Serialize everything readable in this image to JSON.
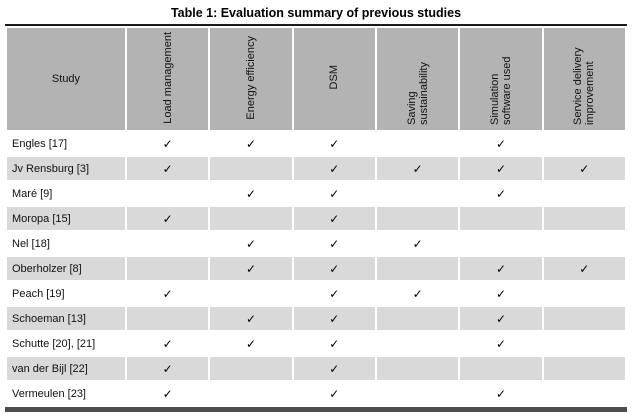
{
  "title": "Table 1: Evaluation summary of previous studies",
  "table": {
    "study_header": "Study",
    "criteria": [
      "Load management",
      "Energy efficiency",
      "DSM",
      "Saving sustainability",
      "Simulation software used",
      "Service delivery improvement"
    ],
    "check_glyph": "✓",
    "rows": [
      {
        "study": "Engles [17]",
        "checks": [
          1,
          1,
          1,
          0,
          1,
          0
        ]
      },
      {
        "study": "Jv Rensburg [3]",
        "checks": [
          1,
          0,
          1,
          1,
          1,
          1
        ]
      },
      {
        "study": "Maré [9]",
        "checks": [
          0,
          1,
          1,
          0,
          1,
          0
        ]
      },
      {
        "study": "Moropa [15]",
        "checks": [
          1,
          0,
          1,
          0,
          0,
          0
        ]
      },
      {
        "study": "Nel [18]",
        "checks": [
          0,
          1,
          1,
          1,
          0,
          0
        ]
      },
      {
        "study": "Oberholzer [8]",
        "checks": [
          0,
          1,
          1,
          0,
          1,
          1
        ]
      },
      {
        "study": "Peach [19]",
        "checks": [
          1,
          0,
          1,
          1,
          1,
          0
        ]
      },
      {
        "study": "Schoeman [13]",
        "checks": [
          0,
          1,
          1,
          0,
          1,
          0
        ]
      },
      {
        "study": "Schutte [20], [21]",
        "checks": [
          1,
          1,
          1,
          0,
          1,
          0
        ]
      },
      {
        "study": "van der Bijl [22]",
        "checks": [
          1,
          0,
          1,
          0,
          0,
          0
        ]
      },
      {
        "study": "Vermeulen [23]",
        "checks": [
          1,
          0,
          1,
          0,
          1,
          0
        ]
      }
    ],
    "colors": {
      "header_bg": "#b3b3b3",
      "row_bg": "#ffffff",
      "row_alt_bg": "#d9d9d9",
      "grid": "#ffffff",
      "border_dark": "#1a1a1a",
      "border_bottom": "#4d4d4d"
    }
  }
}
